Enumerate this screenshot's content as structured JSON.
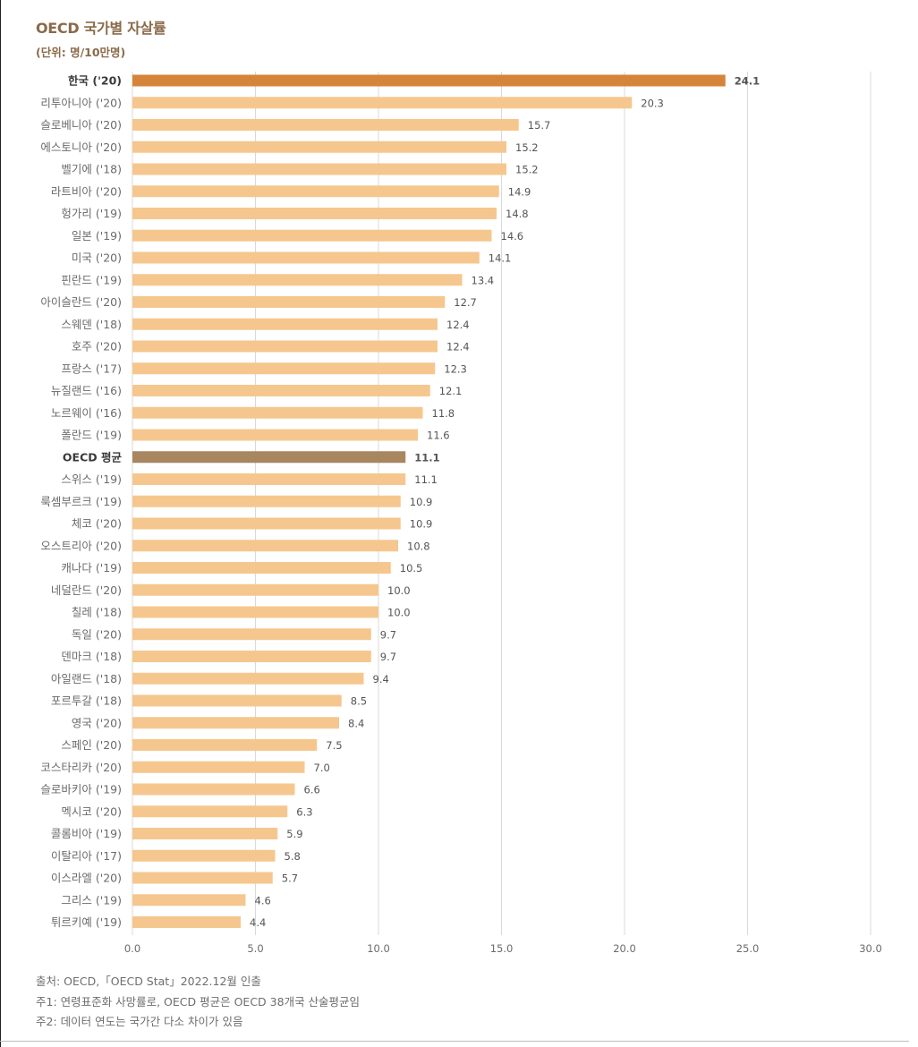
{
  "header": {
    "title": "OECD 국가별 자살률",
    "unit": "(단위: 명/10만명)"
  },
  "colors": {
    "korea": "#D4853A",
    "oecd_avg": "#A88660",
    "default": "#F5C78E",
    "grid": "#d9d9d9",
    "label": "#6b6b6b",
    "value": "#555555"
  },
  "chart_data": {
    "type": "bar",
    "orientation": "horizontal",
    "title": "OECD 국가별 자살률",
    "xlim": [
      0,
      30
    ],
    "xticks": [
      "0.0",
      "5.0",
      "10.0",
      "15.0",
      "20.0",
      "25.0",
      "30.0"
    ],
    "grid": "vertical",
    "categories": [
      "한국 ('20)",
      "리투아니아 ('20)",
      "슬로베니아 ('20)",
      "에스토니아 ('20)",
      "벨기에 ('18)",
      "라트비아 ('20)",
      "헝가리 ('19)",
      "일본 ('19)",
      "미국 ('20)",
      "핀란드 ('19)",
      "아이슬란드 ('20)",
      "스웨덴 ('18)",
      "호주 ('20)",
      "프랑스 ('17)",
      "뉴질랜드 ('16)",
      "노르웨이 ('16)",
      "폴란드 ('19)",
      "OECD 평균",
      "스위스 ('19)",
      "룩셈부르크 ('19)",
      "체코 ('20)",
      "오스트리아 ('20)",
      "캐나다 ('19)",
      "네덜란드 ('20)",
      "칠레 ('18)",
      "독일 ('20)",
      "덴마크 ('18)",
      "아일랜드 ('18)",
      "포르투갈 ('18)",
      "영국 ('20)",
      "스페인 ('20)",
      "코스타리카 ('20)",
      "슬로바키아 ('19)",
      "멕시코 ('20)",
      "콜롬비아 ('19)",
      "이탈리아 ('17)",
      "이스라엘 ('20)",
      "그리스 ('19)",
      "튀르키예 ('19)"
    ],
    "values": [
      24.1,
      20.3,
      15.7,
      15.2,
      15.2,
      14.9,
      14.8,
      14.6,
      14.1,
      13.4,
      12.7,
      12.4,
      12.4,
      12.3,
      12.1,
      11.8,
      11.6,
      11.1,
      11.1,
      10.9,
      10.9,
      10.8,
      10.5,
      10.0,
      10.0,
      9.7,
      9.7,
      9.4,
      8.5,
      8.4,
      7.5,
      7.0,
      6.6,
      6.3,
      5.9,
      5.8,
      5.7,
      4.6,
      4.4
    ],
    "value_labels": [
      "24.1",
      "20.3",
      "15.7",
      "15.2",
      "15.2",
      "14.9",
      "14.8",
      "14.6",
      "14.1",
      "13.4",
      "12.7",
      "12.4",
      "12.4",
      "12.3",
      "12.1",
      "11.8",
      "11.6",
      "11.1",
      "11.1",
      "10.9",
      "10.9",
      "10.8",
      "10.5",
      "10.0",
      "10.0",
      "9.7",
      "9.7",
      "9.4",
      "8.5",
      "8.4",
      "7.5",
      "7.0",
      "6.6",
      "6.3",
      "5.9",
      "5.8",
      "5.7",
      "4.6",
      "4.4"
    ],
    "highlight": {
      "primary": "한국 ('20)",
      "average": "OECD 평균"
    }
  },
  "footer": {
    "source": "출처: OECD,「OECD Stat」2022.12월 인출",
    "note1": "주1: 연령표준화 사망률로, OECD 평균은 OECD 38개국 산술평균임",
    "note2": "주2: 데이터 연도는 국가간 다소 차이가 있음"
  }
}
